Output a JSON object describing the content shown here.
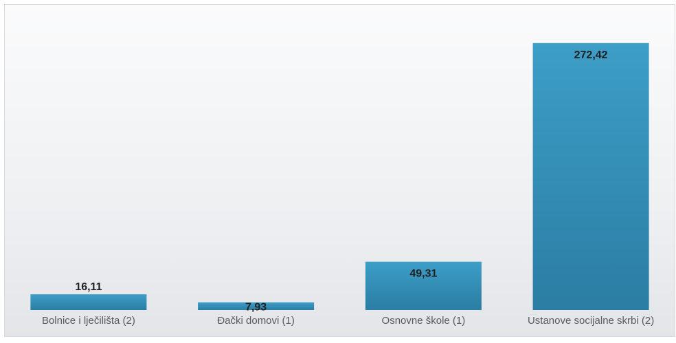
{
  "chart_data": {
    "type": "bar",
    "title": "",
    "xlabel": "",
    "ylabel": "",
    "categories": [
      "Bolnice i lječilišta (2)",
      "Đački domovi (1)",
      "Osnovne škole (1)",
      "Ustanove socijalne skrbi (2)"
    ],
    "values": [
      16.11,
      7.93,
      49.31,
      272.42
    ],
    "value_labels": [
      "16,11",
      "7,93",
      "49,31",
      "272,42"
    ],
    "ylim": [
      0,
      280
    ],
    "grid": false,
    "legend": "none",
    "colors": {
      "bar_top": "#3d9ec7",
      "bar_bottom": "#2b7da3"
    }
  }
}
